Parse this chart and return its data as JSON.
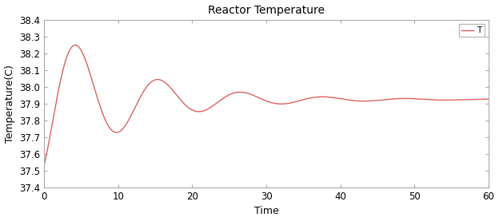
{
  "title": "Reactor Temperature",
  "xlabel": "Time",
  "ylabel": "Temperature(C)",
  "xlim": [
    0,
    60
  ],
  "ylim": [
    37.4,
    38.4
  ],
  "yticks": [
    37.4,
    37.5,
    37.6,
    37.7,
    37.8,
    37.9,
    38.0,
    38.1,
    38.2,
    38.3,
    38.4
  ],
  "xticks": [
    0,
    10,
    20,
    30,
    40,
    50,
    60
  ],
  "line_color": "#e06060",
  "legend_label": "T",
  "steady_state": 37.925,
  "amplitude": 0.48,
  "decay": 0.09,
  "omega": 0.565,
  "phase": 3.75,
  "background_color": "#ffffff",
  "title_fontsize": 10,
  "axis_fontsize": 9,
  "tick_fontsize": 8.5
}
